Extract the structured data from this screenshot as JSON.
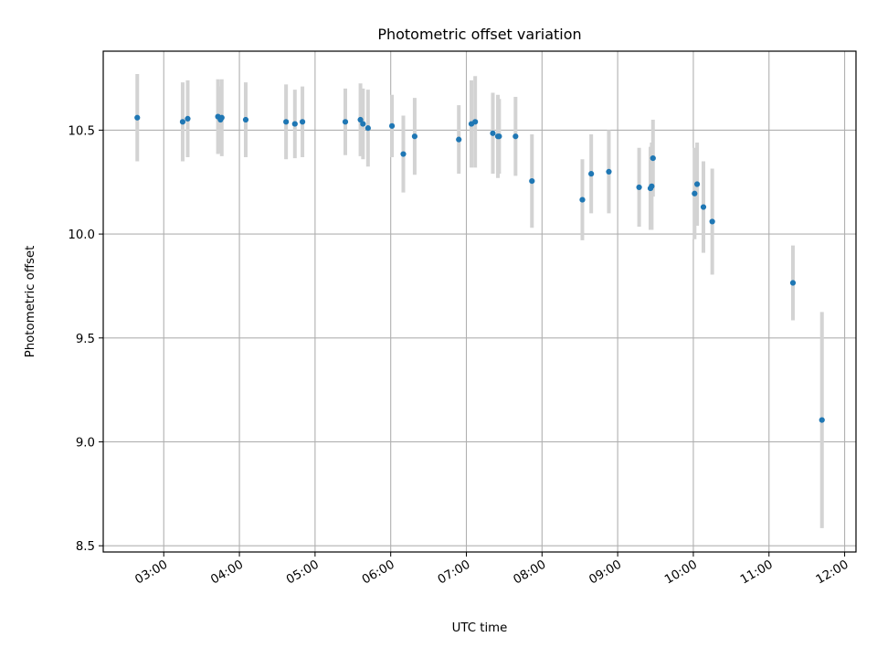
{
  "chart_data": {
    "type": "scatter",
    "title": "Photometric offset variation",
    "xlabel": "UTC time",
    "ylabel": "Photometric offset",
    "x_unit": "UTC hh:mm",
    "xlim": [
      "02:12",
      "12:09"
    ],
    "ylim": [
      8.47,
      10.88
    ],
    "x_ticks": [
      "03:00",
      "04:00",
      "05:00",
      "06:00",
      "07:00",
      "08:00",
      "09:00",
      "10:00",
      "11:00",
      "12:00"
    ],
    "y_ticks": [
      8.5,
      9.0,
      9.5,
      10.0,
      10.5
    ],
    "y_tick_labels": [
      "8.5",
      "9.0",
      "9.5",
      "10.0",
      "10.5"
    ],
    "grid": true,
    "series": [
      {
        "marker_color": "#1f77b4",
        "error_color": "#d3d3d3",
        "points": [
          {
            "x": "02:39",
            "y": 10.56,
            "err": 0.21
          },
          {
            "x": "03:15",
            "y": 10.54,
            "err": 0.19
          },
          {
            "x": "03:19",
            "y": 10.555,
            "err": 0.185
          },
          {
            "x": "03:43",
            "y": 10.565,
            "err": 0.18
          },
          {
            "x": "03:45",
            "y": 10.55,
            "err": 0.16
          },
          {
            "x": "03:46",
            "y": 10.56,
            "err": 0.185
          },
          {
            "x": "04:05",
            "y": 10.55,
            "err": 0.18
          },
          {
            "x": "04:37",
            "y": 10.54,
            "err": 0.18
          },
          {
            "x": "04:44",
            "y": 10.53,
            "err": 0.165
          },
          {
            "x": "04:50",
            "y": 10.54,
            "err": 0.17
          },
          {
            "x": "05:24",
            "y": 10.54,
            "err": 0.16
          },
          {
            "x": "05:36",
            "y": 10.55,
            "err": 0.175
          },
          {
            "x": "05:38",
            "y": 10.53,
            "err": 0.17
          },
          {
            "x": "05:42",
            "y": 10.51,
            "err": 0.185
          },
          {
            "x": "06:01",
            "y": 10.52,
            "err": 0.15
          },
          {
            "x": "06:10",
            "y": 10.385,
            "err": 0.185
          },
          {
            "x": "06:19",
            "y": 10.47,
            "err": 0.185
          },
          {
            "x": "06:54",
            "y": 10.455,
            "err": 0.165
          },
          {
            "x": "07:04",
            "y": 10.53,
            "err": 0.21
          },
          {
            "x": "07:07",
            "y": 10.54,
            "err": 0.22
          },
          {
            "x": "07:21",
            "y": 10.485,
            "err": 0.195
          },
          {
            "x": "07:25",
            "y": 10.47,
            "err": 0.2
          },
          {
            "x": "07:26",
            "y": 10.47,
            "err": 0.18
          },
          {
            "x": "07:39",
            "y": 10.47,
            "err": 0.19
          },
          {
            "x": "07:52",
            "y": 10.255,
            "err": 0.225
          },
          {
            "x": "08:32",
            "y": 10.165,
            "err": 0.195
          },
          {
            "x": "08:39",
            "y": 10.29,
            "err": 0.19
          },
          {
            "x": "08:53",
            "y": 10.3,
            "err": 0.2
          },
          {
            "x": "09:17",
            "y": 10.225,
            "err": 0.19
          },
          {
            "x": "09:26",
            "y": 10.22,
            "err": 0.2
          },
          {
            "x": "09:27",
            "y": 10.23,
            "err": 0.21
          },
          {
            "x": "09:28",
            "y": 10.365,
            "err": 0.185
          },
          {
            "x": "10:01",
            "y": 10.195,
            "err": 0.22
          },
          {
            "x": "10:03",
            "y": 10.24,
            "err": 0.2
          },
          {
            "x": "10:08",
            "y": 10.13,
            "err": 0.22
          },
          {
            "x": "10:15",
            "y": 10.06,
            "err": 0.255
          },
          {
            "x": "11:19",
            "y": 9.765,
            "err": 0.18
          },
          {
            "x": "11:42",
            "y": 9.105,
            "err": 0.52
          }
        ]
      }
    ]
  }
}
